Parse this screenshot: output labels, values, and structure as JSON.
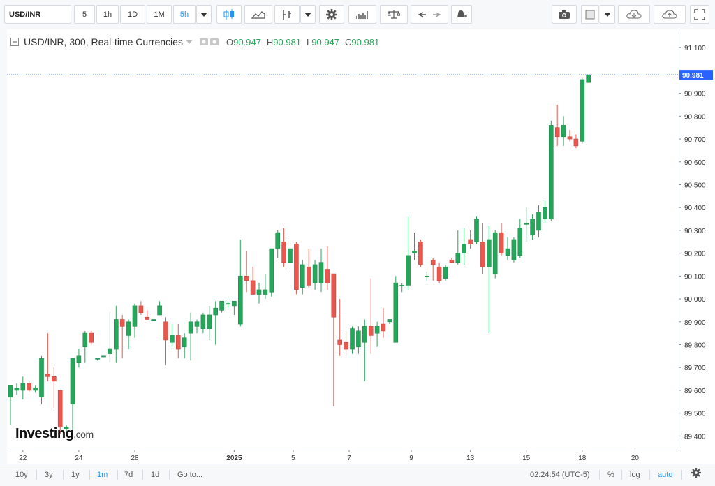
{
  "toolbar": {
    "symbol": "USD/INR",
    "intervals": [
      "5",
      "1h",
      "1D",
      "1M",
      "5h"
    ],
    "active_interval": "5h"
  },
  "legend": {
    "title": "USD/INR, 300, Real-time Currencies",
    "o_label": "O",
    "o": "90.947",
    "h_label": "H",
    "h": "90.981",
    "l_label": "L",
    "l": "90.947",
    "c_label": "C",
    "c": "90.981"
  },
  "colors": {
    "up": "#26a65b",
    "down": "#e8584f",
    "up_wick": "#26a65b",
    "down_wick": "#e8584f"
  },
  "bottom": {
    "ranges": [
      "10y",
      "3y",
      "1y",
      "1m",
      "7d",
      "1d"
    ],
    "active_range": "1m",
    "goto": "Go to...",
    "time": "02:24:54 (UTC-5)",
    "pct": "%",
    "log": "log",
    "auto": "auto"
  },
  "logo": {
    "main": "Investing",
    "suffix": ".com"
  },
  "chart_data": {
    "type": "candlestick",
    "symbol": "USD/INR",
    "interval": "300",
    "ylim": [
      89.34,
      91.18
    ],
    "y_ticks": [
      "91.100",
      "90.900",
      "90.800",
      "90.700",
      "90.600",
      "90.500",
      "90.400",
      "90.300",
      "90.200",
      "90.100",
      "90.000",
      "89.900",
      "89.800",
      "89.700",
      "89.600",
      "89.500",
      "89.400"
    ],
    "x_tick_labels": [
      "22",
      "24",
      "28",
      "2025",
      "5",
      "7",
      "9",
      "13",
      "15",
      "18",
      "20"
    ],
    "x_tick_index": [
      2,
      11,
      20,
      36,
      45.5,
      54.5,
      64.5,
      74,
      83,
      92,
      100.5
    ],
    "last_price": "90.981",
    "candles": [
      [
        89.57,
        89.62,
        89.45,
        89.62
      ],
      [
        89.6,
        89.63,
        89.58,
        89.61
      ],
      [
        89.6,
        89.66,
        89.56,
        89.63
      ],
      [
        89.63,
        89.64,
        89.59,
        89.6
      ],
      [
        89.6,
        89.62,
        89.59,
        89.61
      ],
      [
        89.57,
        89.75,
        89.54,
        89.74
      ],
      [
        89.67,
        89.85,
        89.64,
        89.66
      ],
      [
        89.66,
        89.7,
        89.52,
        89.64
      ],
      [
        89.6,
        89.6,
        89.41,
        89.44
      ],
      [
        89.43,
        89.45,
        89.42,
        89.44
      ],
      [
        89.54,
        89.74,
        89.42,
        89.74
      ],
      [
        89.72,
        89.78,
        89.7,
        89.75
      ],
      [
        89.79,
        89.86,
        89.72,
        89.85
      ],
      [
        89.85,
        89.86,
        89.8,
        89.81
      ],
      [
        89.74,
        89.74,
        89.73,
        89.74
      ],
      [
        89.75,
        89.75,
        89.75,
        89.75
      ],
      [
        89.76,
        89.94,
        89.72,
        89.78
      ],
      [
        89.78,
        89.97,
        89.72,
        89.91
      ],
      [
        89.91,
        89.93,
        89.74,
        89.88
      ],
      [
        89.84,
        89.91,
        89.78,
        89.9
      ],
      [
        89.88,
        89.98,
        89.83,
        89.97
      ],
      [
        89.97,
        89.99,
        89.93,
        89.94
      ],
      [
        89.92,
        89.95,
        89.91,
        89.91
      ],
      [
        89.91,
        89.91,
        89.91,
        89.91
      ],
      [
        89.93,
        89.99,
        89.93,
        89.97
      ],
      [
        89.9,
        89.92,
        89.71,
        89.82
      ],
      [
        89.81,
        89.89,
        89.79,
        89.84
      ],
      [
        89.84,
        89.89,
        89.74,
        89.78
      ],
      [
        89.79,
        89.85,
        89.74,
        89.83
      ],
      [
        89.85,
        89.94,
        89.73,
        89.9
      ],
      [
        89.88,
        89.91,
        89.85,
        89.9
      ],
      [
        89.87,
        89.94,
        89.85,
        89.93
      ],
      [
        89.87,
        89.97,
        89.82,
        89.93
      ],
      [
        89.93,
        89.99,
        89.8,
        89.96
      ],
      [
        89.95,
        89.99,
        89.94,
        89.99
      ],
      [
        89.98,
        89.99,
        89.96,
        89.98
      ],
      [
        89.97,
        89.99,
        89.93,
        89.99
      ],
      [
        89.89,
        90.26,
        89.88,
        90.1
      ],
      [
        90.1,
        90.21,
        90.03,
        90.08
      ],
      [
        90.08,
        90.14,
        90.02,
        90.02
      ],
      [
        90.02,
        90.07,
        89.98,
        90.04
      ],
      [
        90.02,
        90.11,
        90.0,
        90.04
      ],
      [
        90.03,
        90.22,
        90.01,
        90.22
      ],
      [
        90.22,
        90.3,
        90.18,
        90.29
      ],
      [
        90.25,
        90.31,
        90.14,
        90.16
      ],
      [
        90.16,
        90.26,
        90.13,
        90.22
      ],
      [
        90.24,
        90.25,
        90.02,
        90.04
      ],
      [
        90.05,
        90.17,
        90.02,
        90.15
      ],
      [
        90.14,
        90.22,
        90.05,
        90.06
      ],
      [
        90.07,
        90.17,
        90.04,
        90.15
      ],
      [
        90.07,
        90.22,
        90.03,
        90.16
      ],
      [
        90.13,
        90.23,
        90.04,
        90.07
      ],
      [
        90.11,
        90.11,
        89.53,
        89.92
      ],
      [
        89.82,
        90.0,
        89.75,
        89.8
      ],
      [
        89.81,
        89.86,
        89.75,
        89.78
      ],
      [
        89.78,
        89.88,
        89.76,
        89.87
      ],
      [
        89.79,
        89.88,
        89.76,
        89.86
      ],
      [
        89.81,
        89.91,
        89.64,
        89.88
      ],
      [
        89.88,
        90.09,
        89.76,
        89.84
      ],
      [
        89.85,
        89.9,
        89.79,
        89.88
      ],
      [
        89.89,
        89.96,
        89.83,
        89.86
      ],
      [
        89.9,
        89.91,
        89.89,
        89.91
      ],
      [
        89.81,
        90.1,
        89.81,
        90.07
      ],
      [
        90.06,
        90.07,
        90.03,
        90.06
      ],
      [
        90.06,
        90.36,
        90.04,
        90.19
      ],
      [
        90.2,
        90.29,
        90.17,
        90.21
      ],
      [
        90.25,
        90.26,
        90.14,
        90.15
      ],
      [
        90.1,
        90.12,
        90.08,
        90.1
      ],
      [
        90.17,
        90.18,
        90.08,
        90.15
      ],
      [
        90.14,
        90.16,
        90.07,
        90.08
      ],
      [
        90.09,
        90.15,
        90.08,
        90.14
      ],
      [
        90.17,
        90.18,
        90.16,
        90.16
      ],
      [
        90.16,
        90.3,
        90.15,
        90.2
      ],
      [
        90.2,
        90.31,
        90.15,
        90.24
      ],
      [
        90.26,
        90.3,
        90.22,
        90.24
      ],
      [
        90.25,
        90.36,
        90.24,
        90.35
      ],
      [
        90.25,
        90.33,
        90.11,
        90.14
      ],
      [
        90.14,
        90.32,
        89.85,
        90.26
      ],
      [
        90.11,
        90.3,
        90.09,
        90.29
      ],
      [
        90.29,
        90.33,
        90.19,
        90.2
      ],
      [
        90.19,
        90.27,
        90.17,
        90.22
      ],
      [
        90.17,
        90.27,
        90.16,
        90.26
      ],
      [
        90.19,
        90.35,
        90.18,
        90.31
      ],
      [
        90.33,
        90.4,
        90.25,
        90.33
      ],
      [
        90.28,
        90.37,
        90.26,
        90.35
      ],
      [
        90.3,
        90.41,
        90.27,
        90.38
      ],
      [
        90.35,
        90.43,
        90.33,
        90.4
      ],
      [
        90.35,
        90.78,
        90.34,
        90.76
      ],
      [
        90.75,
        90.85,
        90.67,
        90.71
      ],
      [
        90.71,
        90.8,
        90.67,
        90.76
      ],
      [
        90.71,
        90.74,
        90.69,
        90.7
      ],
      [
        90.7,
        90.72,
        90.66,
        90.67
      ],
      [
        90.69,
        90.97,
        90.68,
        90.96
      ],
      [
        90.947,
        90.981,
        90.947,
        90.981
      ]
    ]
  }
}
